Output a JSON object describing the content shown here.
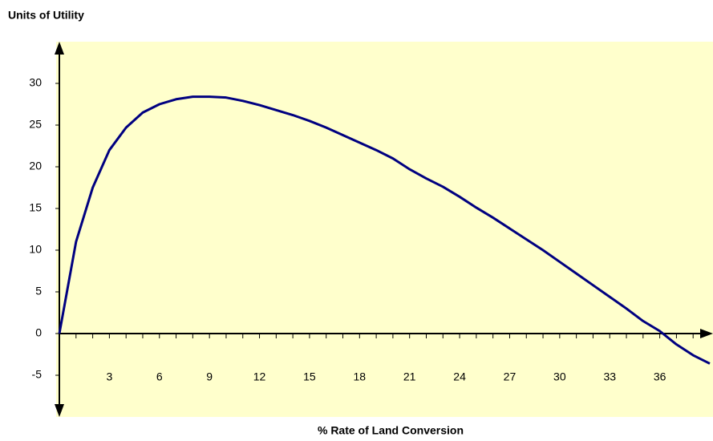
{
  "chart_data": {
    "type": "line",
    "y_label": "Units of Utility",
    "x_label": "% Rate of Land Conversion",
    "x": [
      0,
      1,
      2,
      3,
      4,
      5,
      6,
      7,
      8,
      9,
      10,
      11,
      12,
      13,
      14,
      15,
      16,
      17,
      18,
      19,
      20,
      21,
      22,
      23,
      24,
      25,
      26,
      27,
      28,
      29,
      30,
      31,
      32,
      33,
      34,
      35,
      36,
      37,
      38,
      39
    ],
    "series": [
      {
        "color": "#000080",
        "values": [
          0,
          11,
          17.5,
          22,
          24.7,
          26.5,
          27.5,
          28.1,
          28.4,
          28.4,
          28.3,
          27.9,
          27.4,
          26.8,
          26.2,
          25.5,
          24.7,
          23.8,
          22.9,
          22,
          21,
          19.7,
          18.6,
          17.6,
          16.4,
          15.1,
          13.9,
          12.6,
          11.3,
          10,
          8.6,
          7.2,
          5.8,
          4.4,
          3,
          1.5,
          0.3,
          -1.3,
          -2.6,
          -3.6
        ]
      }
    ],
    "xlim": [
      0,
      39
    ],
    "ylim": [
      -10,
      35
    ],
    "xticks": [
      3,
      6,
      9,
      12,
      15,
      18,
      21,
      24,
      27,
      30,
      33,
      36
    ],
    "xminor_ticks": [
      1,
      2,
      4,
      5,
      7,
      8,
      10,
      11,
      13,
      14,
      16,
      17,
      19,
      20,
      22,
      23,
      25,
      26,
      28,
      29,
      31,
      32,
      34,
      35,
      37,
      38
    ],
    "yticks": [
      -5,
      0,
      5,
      10,
      15,
      20,
      25,
      30
    ],
    "background": "#ffffcc"
  }
}
